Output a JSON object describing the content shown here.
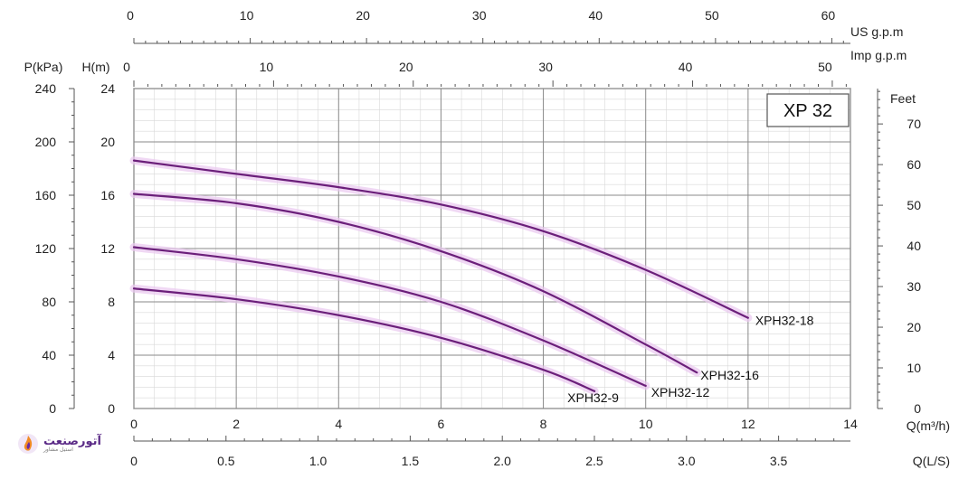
{
  "chart_data": {
    "type": "line",
    "model": "XP 32",
    "x_axis_primary": {
      "label": "Q(m³/h)",
      "range": [
        0,
        14
      ],
      "ticks": [
        0,
        2,
        4,
        6,
        8,
        10,
        12,
        14
      ]
    },
    "x_axis_ls": {
      "label": "Q(L/S)",
      "range": [
        0,
        3.89
      ],
      "ticks": [
        "0",
        "0.5",
        "1.0",
        "1.5",
        "2.0",
        "2.5",
        "3.0",
        "3.5"
      ]
    },
    "x_axis_us_gpm": {
      "label": "US  g.p.m",
      "range": [
        0,
        61.6
      ],
      "ticks": [
        0,
        10,
        20,
        30,
        40,
        50,
        60
      ]
    },
    "x_axis_imp_gpm": {
      "label": "Imp  g.p.m",
      "range": [
        0,
        51.3
      ],
      "ticks": [
        0,
        10,
        20,
        30,
        40,
        50
      ]
    },
    "y_axis_head": {
      "label": "H(m)",
      "range": [
        0,
        24
      ],
      "ticks": [
        0,
        4,
        8,
        12,
        16,
        20,
        24
      ]
    },
    "y_axis_pressure": {
      "label": "P(kPa)",
      "range": [
        0,
        240
      ],
      "ticks": [
        0,
        40,
        80,
        120,
        160,
        200,
        240
      ]
    },
    "y_axis_feet": {
      "label": "Feet",
      "range": [
        0,
        78.7
      ],
      "ticks": [
        0,
        10,
        20,
        30,
        40,
        50,
        60,
        70
      ]
    },
    "grid": true,
    "series": [
      {
        "name": "XPH32-18",
        "color": "#6b1f7a",
        "x": [
          0,
          2,
          4,
          6,
          8,
          10,
          12
        ],
        "y": [
          18.6,
          17.6,
          16.6,
          15.3,
          13.3,
          10.4,
          6.8
        ]
      },
      {
        "name": "XPH32-16",
        "color": "#6b1f7a",
        "x": [
          0,
          2,
          4,
          6,
          8,
          10,
          11
        ],
        "y": [
          16.1,
          15.4,
          14.0,
          11.8,
          8.8,
          4.8,
          2.7
        ]
      },
      {
        "name": "XPH32-12",
        "color": "#6b1f7a",
        "x": [
          0,
          2,
          4,
          6,
          8,
          10
        ],
        "y": [
          12.1,
          11.2,
          9.9,
          8.0,
          5.1,
          1.7
        ]
      },
      {
        "name": "XPH32-9",
        "color": "#6b1f7a",
        "x": [
          0,
          2,
          4,
          6,
          8,
          9
        ],
        "y": [
          9.0,
          8.2,
          7.0,
          5.3,
          2.9,
          1.3
        ]
      }
    ]
  },
  "watermark": {
    "brand": "آتورصنعت",
    "sub": "استیل مشاور"
  }
}
